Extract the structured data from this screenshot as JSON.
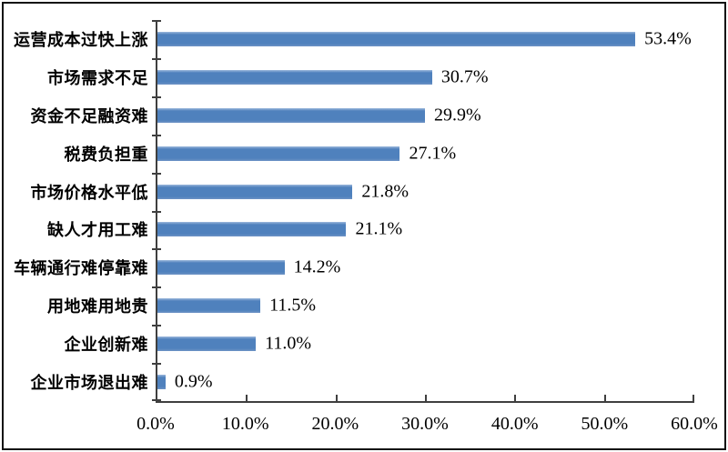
{
  "chart_data": {
    "type": "bar",
    "orientation": "horizontal",
    "title": "",
    "xlabel": "",
    "ylabel": "",
    "categories": [
      "运营成本过快上涨",
      "市场需求不足",
      "资金不足融资难",
      "税费负担重",
      "市场价格水平低",
      "缺人才用工难",
      "车辆通行难停靠难",
      "用地难用地贵",
      "企业创新难",
      "企业市场退出难"
    ],
    "values": [
      53.4,
      30.7,
      29.9,
      27.1,
      21.8,
      21.1,
      14.2,
      11.5,
      11.0,
      0.9
    ],
    "value_labels": [
      "53.4%",
      "30.7%",
      "29.9%",
      "27.1%",
      "21.8%",
      "21.1%",
      "14.2%",
      "11.5%",
      "11.0%",
      "0.9%"
    ],
    "xlim": [
      0,
      60
    ],
    "x_tick_values": [
      0,
      10,
      20,
      30,
      40,
      50,
      60
    ],
    "x_tick_labels": [
      "0.0%",
      "10.0%",
      "20.0%",
      "30.0%",
      "40.0%",
      "50.0%",
      "60.0%"
    ],
    "grid": false,
    "legend_position": "none"
  },
  "colors": {
    "bar": "#4f81bd",
    "axis": "#3f3f3f",
    "text": "#000000",
    "border": "#111111",
    "background": "#ffffff"
  }
}
